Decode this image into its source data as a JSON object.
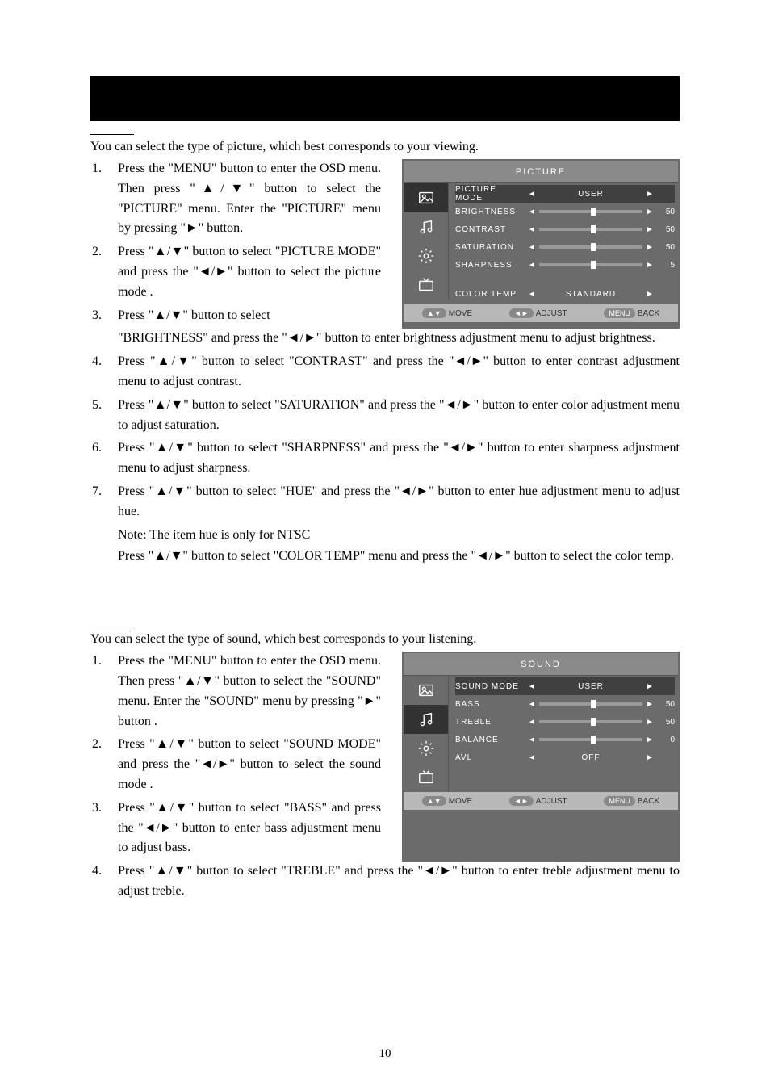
{
  "blackbar_height": 56,
  "intro_picture": "You can select the type of picture, which best corresponds to your viewing.",
  "picture_steps": [
    {
      "n": "1.",
      "t": "Press the \"MENU\" button to enter the OSD menu. Then press \"▲/▼\" button to select the \"PICTURE\" menu. Enter the \"PICTURE\" menu by pressing \"►\" button.",
      "narrow": true
    },
    {
      "n": "2.",
      "t": "Press \"▲/▼\" button to select \"PICTURE MODE\" and press the \"◄/►\" button to select the picture mode .",
      "narrow": true
    },
    {
      "n": "3.",
      "t": "Press \"▲/▼\" button to select \"BRIGHTNESS\" and press the \"◄/►\" button to enter brightness adjustment menu to adjust brightness."
    },
    {
      "n": "4.",
      "t": "Press \"▲/▼\" button to select \"CONTRAST\" and press the \"◄/►\" button to enter contrast adjustment menu to adjust contrast."
    },
    {
      "n": "5.",
      "t": "Press \"▲/▼\" button to select \"SATURATION\" and press the \"◄/►\" button to enter color adjustment menu to adjust saturation."
    },
    {
      "n": "6.",
      "t": "Press \"▲/▼\" button to select \"SHARPNESS\" and press the \"◄/►\" button to enter sharpness adjustment menu to adjust sharpness."
    },
    {
      "n": "7.",
      "t": "Press \"▲/▼\" button to select \"HUE\" and press the \"◄/►\" button to enter hue adjustment menu to adjust hue."
    }
  ],
  "picture_note": [
    "Note: The item hue is only for NTSC",
    "Press \"▲/▼\" button to select \"COLOR TEMP\" menu and press the \"◄/►\" button to select the color temp."
  ],
  "intro_sound": "You can select the type of sound, which best corresponds to your listening.",
  "sound_steps": [
    {
      "n": "1.",
      "t": "Press the \"MENU\" button to enter the OSD menu. Then press \"▲/▼\" button to select the \"SOUND\" menu. Enter the \"SOUND\" menu by pressing \"►\" button .",
      "narrow": true
    },
    {
      "n": "2.",
      "t": "Press \"▲/▼\" button to select \"SOUND MODE\" and press the \"◄/►\" button to select the sound mode .",
      "narrow": true
    },
    {
      "n": "3.",
      "t": "Press \"▲/▼\" button to select \"BASS\" and press the \"◄/►\" button to enter bass adjustment menu to adjust bass.",
      "narrow": true
    },
    {
      "n": "4.",
      "t": "Press \"▲/▼\" button to select \"TREBLE\" and press the \"◄/►\" button to enter treble adjustment menu to adjust treble."
    }
  ],
  "osd_picture": {
    "title": "PICTURE",
    "active_idx": 0,
    "rows": [
      {
        "label": "PICTURE MODE",
        "type": "text",
        "value": "USER",
        "sel": true
      },
      {
        "label": "BRIGHTNESS",
        "type": "slider",
        "pos": 50,
        "val": "50"
      },
      {
        "label": "CONTRAST",
        "type": "slider",
        "pos": 50,
        "val": "50"
      },
      {
        "label": "SATURATION",
        "type": "slider",
        "pos": 50,
        "val": "50"
      },
      {
        "label": "SHARPNESS",
        "type": "slider",
        "pos": 50,
        "val": "5"
      },
      {
        "label": "",
        "type": "spacer",
        "dim": true
      },
      {
        "label": "COLOR TEMP",
        "type": "text",
        "value": "STANDARD"
      }
    ],
    "footer": [
      {
        "pill": "▲▼",
        "t": "MOVE"
      },
      {
        "pill": "◄►",
        "t": "ADJUST"
      },
      {
        "pill": "MENU",
        "t": "BACK"
      }
    ]
  },
  "osd_sound": {
    "title": "SOUND",
    "active_idx": 1,
    "rows": [
      {
        "label": "SOUND MODE",
        "type": "text",
        "value": "USER",
        "sel": true
      },
      {
        "label": "BASS",
        "type": "slider",
        "pos": 50,
        "val": "50"
      },
      {
        "label": "TREBLE",
        "type": "slider",
        "pos": 50,
        "val": "50"
      },
      {
        "label": "BALANCE",
        "type": "slider",
        "pos": 50,
        "val": "0"
      },
      {
        "label": "AVL",
        "type": "text",
        "value": "OFF"
      },
      {
        "label": "",
        "type": "spacer"
      },
      {
        "label": "",
        "type": "spacer"
      }
    ],
    "footer": [
      {
        "pill": "▲▼",
        "t": "MOVE"
      },
      {
        "pill": "◄►",
        "t": "ADJUST"
      },
      {
        "pill": "MENU",
        "t": "BACK"
      }
    ]
  },
  "page_number": "10",
  "side_icons": [
    "picture",
    "music",
    "gear",
    "tv"
  ]
}
